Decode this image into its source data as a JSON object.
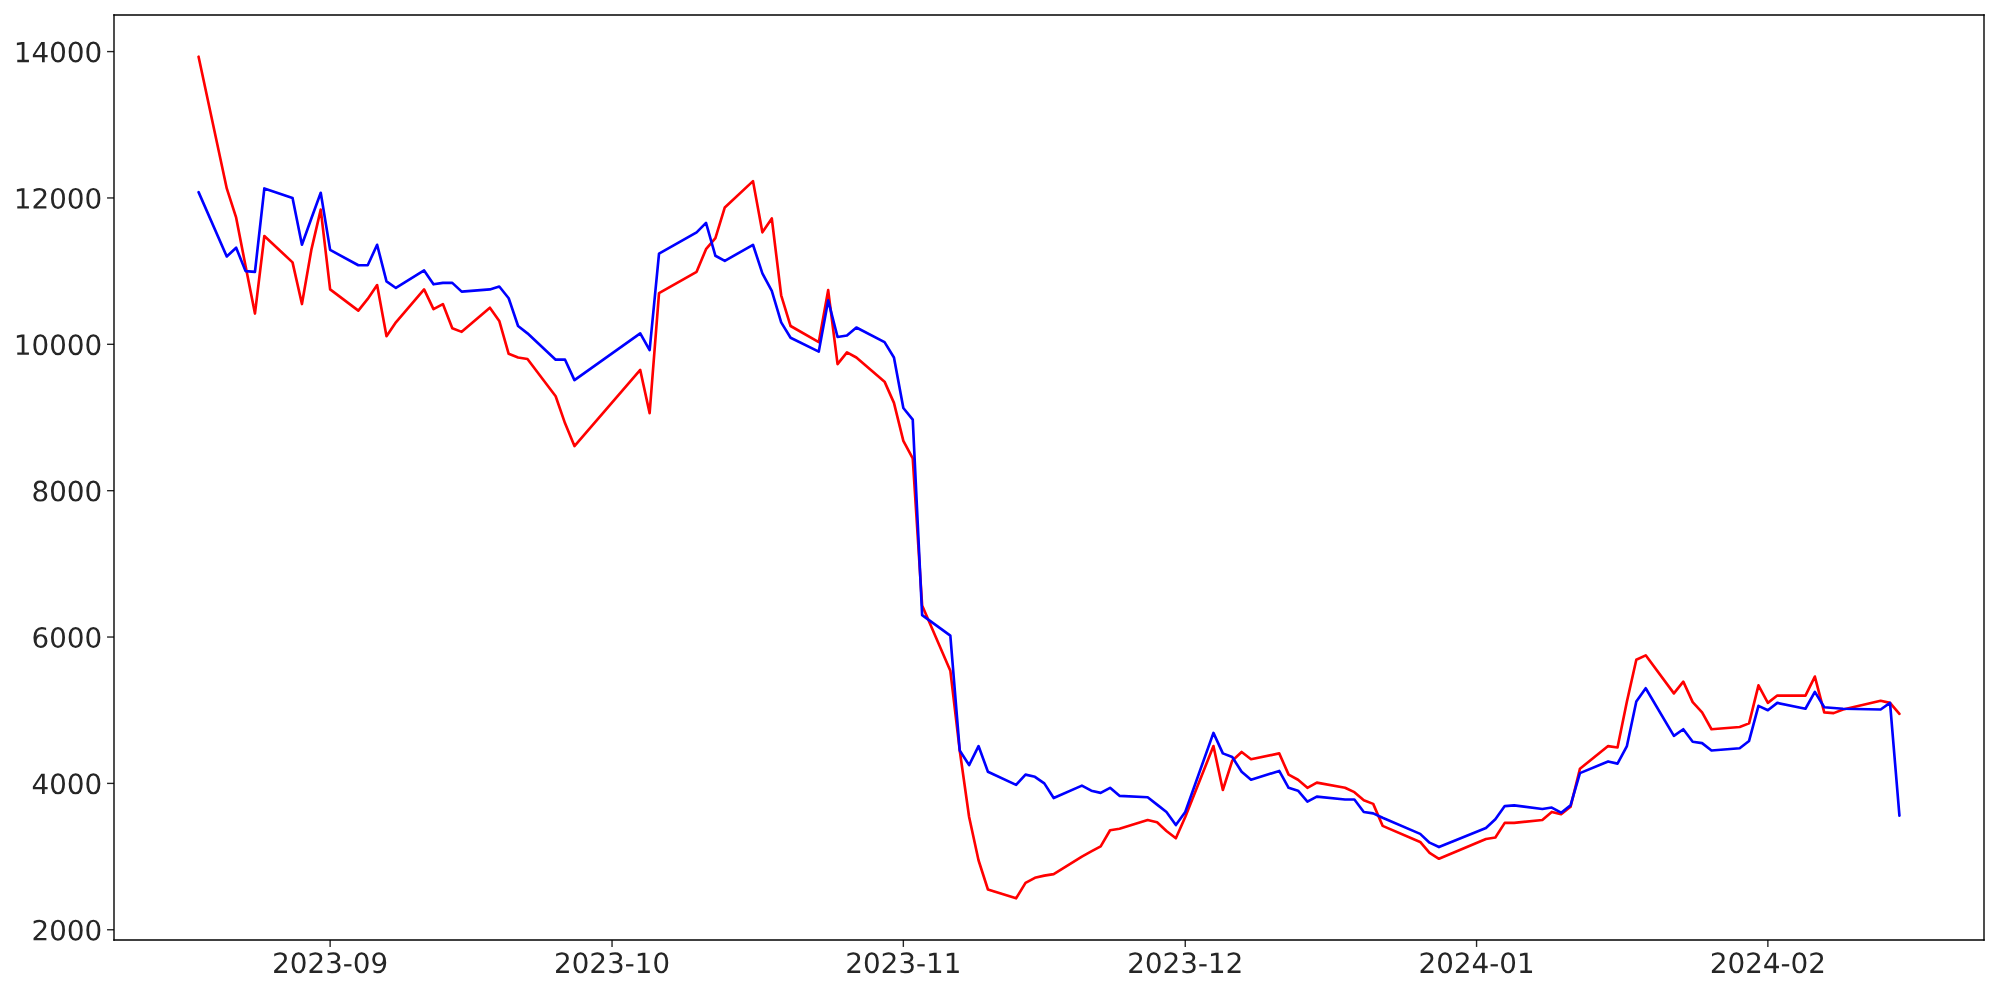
{
  "chart_data": {
    "type": "line",
    "x": [
      "2023-08-18",
      "2023-08-21",
      "2023-08-22",
      "2023-08-23",
      "2023-08-24",
      "2023-08-25",
      "2023-08-28",
      "2023-08-29",
      "2023-08-30",
      "2023-08-31",
      "2023-09-01",
      "2023-09-04",
      "2023-09-05",
      "2023-09-06",
      "2023-09-07",
      "2023-09-08",
      "2023-09-11",
      "2023-09-12",
      "2023-09-13",
      "2023-09-14",
      "2023-09-15",
      "2023-09-18",
      "2023-09-19",
      "2023-09-20",
      "2023-09-21",
      "2023-09-22",
      "2023-09-25",
      "2023-09-26",
      "2023-09-27",
      "2023-10-04",
      "2023-10-05",
      "2023-10-06",
      "2023-10-10",
      "2023-10-11",
      "2023-10-12",
      "2023-10-13",
      "2023-10-16",
      "2023-10-17",
      "2023-10-18",
      "2023-10-19",
      "2023-10-20",
      "2023-10-23",
      "2023-10-24",
      "2023-10-25",
      "2023-10-26",
      "2023-10-27",
      "2023-10-30",
      "2023-10-31",
      "2023-11-01",
      "2023-11-02",
      "2023-11-03",
      "2023-11-06",
      "2023-11-07",
      "2023-11-08",
      "2023-11-09",
      "2023-11-10",
      "2023-11-13",
      "2023-11-14",
      "2023-11-15",
      "2023-11-16",
      "2023-11-17",
      "2023-11-20",
      "2023-11-21",
      "2023-11-22",
      "2023-11-23",
      "2023-11-24",
      "2023-11-27",
      "2023-11-28",
      "2023-11-29",
      "2023-11-30",
      "2023-12-01",
      "2023-12-04",
      "2023-12-05",
      "2023-12-06",
      "2023-12-07",
      "2023-12-08",
      "2023-12-11",
      "2023-12-12",
      "2023-12-13",
      "2023-12-14",
      "2023-12-15",
      "2023-12-18",
      "2023-12-19",
      "2023-12-20",
      "2023-12-21",
      "2023-12-22",
      "2023-12-26",
      "2023-12-27",
      "2023-12-28",
      "2024-01-02",
      "2024-01-03",
      "2024-01-04",
      "2024-01-05",
      "2024-01-08",
      "2024-01-09",
      "2024-01-10",
      "2024-01-11",
      "2024-01-12",
      "2024-01-15",
      "2024-01-16",
      "2024-01-17",
      "2024-01-18",
      "2024-01-19",
      "2024-01-22",
      "2024-01-23",
      "2024-01-24",
      "2024-01-25",
      "2024-01-26",
      "2024-01-29",
      "2024-01-30",
      "2024-01-31",
      "2024-02-01",
      "2024-02-02",
      "2024-02-05",
      "2024-02-06",
      "2024-02-07",
      "2024-02-08",
      "2024-02-09",
      "2024-02-13",
      "2024-02-14",
      "2024-02-15"
    ],
    "series": [
      {
        "color": "#ff0000",
        "values": [
          13930,
          12130,
          11730,
          11070,
          10420,
          11480,
          11120,
          10550,
          11290,
          11840,
          10750,
          10460,
          10620,
          10810,
          10110,
          10300,
          10750,
          10480,
          10550,
          10220,
          10170,
          10500,
          10320,
          9870,
          9820,
          9800,
          9290,
          8920,
          8610,
          9650,
          9060,
          10700,
          10990,
          11300,
          11450,
          11870,
          12230,
          11530,
          11720,
          10670,
          10250,
          10030,
          10740,
          9730,
          9890,
          9820,
          9490,
          9200,
          8680,
          8440,
          6430,
          5540,
          4450,
          3540,
          2950,
          2550,
          2430,
          2640,
          2710,
          2740,
          2760,
          3000,
          3070,
          3140,
          3360,
          3380,
          3500,
          3470,
          3350,
          3250,
          3540,
          4510,
          3910,
          4310,
          4430,
          4330,
          4410,
          4120,
          4050,
          3940,
          4010,
          3940,
          3880,
          3770,
          3720,
          3420,
          3200,
          3050,
          2970,
          3240,
          3260,
          3460,
          3460,
          3500,
          3610,
          3580,
          3680,
          4200,
          4510,
          4490,
          5120,
          5690,
          5750,
          5230,
          5390,
          5110,
          4970,
          4740,
          4770,
          4820,
          5340,
          5100,
          5200,
          5200,
          5460,
          4970,
          4960,
          5010,
          5130,
          5100,
          4950
        ]
      },
      {
        "color": "#0000ff",
        "values": [
          12080,
          11200,
          11320,
          11000,
          10990,
          12130,
          12000,
          11360,
          11720,
          12070,
          11290,
          11080,
          11080,
          11360,
          10860,
          10770,
          11010,
          10820,
          10840,
          10840,
          10720,
          10750,
          10790,
          10630,
          10250,
          10150,
          9790,
          9790,
          9510,
          10150,
          9920,
          11240,
          11530,
          11660,
          11210,
          11140,
          11360,
          10970,
          10730,
          10300,
          10090,
          9900,
          10600,
          10100,
          10120,
          10230,
          10030,
          9820,
          9130,
          8970,
          6300,
          6020,
          4450,
          4250,
          4510,
          4160,
          3980,
          4120,
          4090,
          4000,
          3800,
          3970,
          3900,
          3870,
          3940,
          3830,
          3810,
          3710,
          3610,
          3430,
          3610,
          4690,
          4410,
          4360,
          4160,
          4050,
          4170,
          3940,
          3900,
          3750,
          3820,
          3780,
          3780,
          3610,
          3590,
          3530,
          3310,
          3190,
          3130,
          3390,
          3510,
          3690,
          3700,
          3650,
          3670,
          3600,
          3700,
          4140,
          4300,
          4270,
          4510,
          5120,
          5300,
          4650,
          4740,
          4570,
          4550,
          4450,
          4480,
          4580,
          5060,
          5000,
          5100,
          5020,
          5250,
          5040,
          5030,
          5020,
          5010,
          5100,
          3560
        ]
      }
    ],
    "xlim": [
      "2023-08-09",
      "2024-02-24"
    ],
    "ylim": [
      1860,
      14500
    ],
    "xticks": [
      {
        "value": "2023-09-01",
        "label": "2023-09"
      },
      {
        "value": "2023-10-01",
        "label": "2023-10"
      },
      {
        "value": "2023-11-01",
        "label": "2023-11"
      },
      {
        "value": "2023-12-01",
        "label": "2023-12"
      },
      {
        "value": "2024-01-01",
        "label": "2024-01"
      },
      {
        "value": "2024-02-01",
        "label": "2024-02"
      }
    ],
    "yticks": [
      2000,
      4000,
      6000,
      8000,
      10000,
      12000,
      14000
    ],
    "grid": false,
    "marker": "none",
    "line_style": "solid"
  }
}
